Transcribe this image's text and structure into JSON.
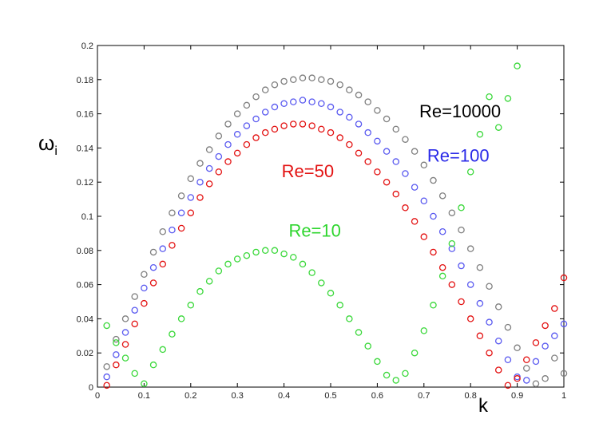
{
  "chart_data": {
    "type": "scatter",
    "xlabel": "k",
    "ylabel": "ω",
    "ylabel_subscript": "i",
    "xlim": [
      0,
      1
    ],
    "ylim": [
      0,
      0.2
    ],
    "grid": false,
    "x_ticks": [
      "0",
      "0.1",
      "0.2",
      "0.3",
      "0.4",
      "0.5",
      "0.6",
      "0.7",
      "0.8",
      "0.9",
      "1"
    ],
    "y_ticks": [
      "0",
      "0.02",
      "0.04",
      "0.06",
      "0.08",
      "0.1",
      "0.12",
      "0.14",
      "0.16",
      "0.18",
      "0.2"
    ],
    "annotations": [
      {
        "text": "Re=10000",
        "color": "#000000",
        "at": [
          0.69,
          0.158
        ]
      },
      {
        "text": "Re=100",
        "color": "#2a2ae8",
        "at": [
          0.707,
          0.132
        ]
      },
      {
        "text": "Re=50",
        "color": "#e31212",
        "at": [
          0.395,
          0.123
        ]
      },
      {
        "text": "Re=10",
        "color": "#2fd62f",
        "at": [
          0.41,
          0.088
        ]
      }
    ],
    "series": [
      {
        "color": "#7f7f7f",
        "marker": "open-circle",
        "points": [
          [
            0.02,
            0.012
          ],
          [
            0.04,
            0.028
          ],
          [
            0.06,
            0.04
          ],
          [
            0.08,
            0.053
          ],
          [
            0.1,
            0.066
          ],
          [
            0.12,
            0.079
          ],
          [
            0.14,
            0.091
          ],
          [
            0.16,
            0.102
          ],
          [
            0.18,
            0.112
          ],
          [
            0.2,
            0.122
          ],
          [
            0.22,
            0.131
          ],
          [
            0.24,
            0.139
          ],
          [
            0.26,
            0.147
          ],
          [
            0.28,
            0.154
          ],
          [
            0.3,
            0.16
          ],
          [
            0.32,
            0.165
          ],
          [
            0.34,
            0.17
          ],
          [
            0.36,
            0.174
          ],
          [
            0.38,
            0.177
          ],
          [
            0.4,
            0.179
          ],
          [
            0.42,
            0.18
          ],
          [
            0.44,
            0.181
          ],
          [
            0.46,
            0.181
          ],
          [
            0.48,
            0.18
          ],
          [
            0.5,
            0.179
          ],
          [
            0.52,
            0.177
          ],
          [
            0.54,
            0.174
          ],
          [
            0.56,
            0.171
          ],
          [
            0.58,
            0.167
          ],
          [
            0.6,
            0.162
          ],
          [
            0.62,
            0.157
          ],
          [
            0.64,
            0.151
          ],
          [
            0.66,
            0.145
          ],
          [
            0.68,
            0.138
          ],
          [
            0.7,
            0.13
          ],
          [
            0.72,
            0.121
          ],
          [
            0.74,
            0.112
          ],
          [
            0.76,
            0.102
          ],
          [
            0.78,
            0.092
          ],
          [
            0.8,
            0.081
          ],
          [
            0.82,
            0.07
          ],
          [
            0.84,
            0.059
          ],
          [
            0.86,
            0.047
          ],
          [
            0.88,
            0.035
          ],
          [
            0.9,
            0.023
          ],
          [
            0.92,
            0.011
          ],
          [
            0.94,
            0.002
          ],
          [
            0.96,
            0.005
          ],
          [
            0.98,
            0.017
          ],
          [
            1.0,
            0.008
          ]
        ]
      },
      {
        "color": "#5a5af0",
        "marker": "open-circle",
        "points": [
          [
            0.02,
            0.006
          ],
          [
            0.04,
            0.019
          ],
          [
            0.06,
            0.032
          ],
          [
            0.08,
            0.045
          ],
          [
            0.1,
            0.058
          ],
          [
            0.12,
            0.07
          ],
          [
            0.14,
            0.081
          ],
          [
            0.16,
            0.092
          ],
          [
            0.18,
            0.102
          ],
          [
            0.2,
            0.111
          ],
          [
            0.22,
            0.12
          ],
          [
            0.24,
            0.128
          ],
          [
            0.26,
            0.135
          ],
          [
            0.28,
            0.142
          ],
          [
            0.3,
            0.148
          ],
          [
            0.32,
            0.153
          ],
          [
            0.34,
            0.157
          ],
          [
            0.36,
            0.161
          ],
          [
            0.38,
            0.164
          ],
          [
            0.4,
            0.166
          ],
          [
            0.42,
            0.167
          ],
          [
            0.44,
            0.168
          ],
          [
            0.46,
            0.167
          ],
          [
            0.48,
            0.166
          ],
          [
            0.5,
            0.164
          ],
          [
            0.52,
            0.161
          ],
          [
            0.54,
            0.158
          ],
          [
            0.56,
            0.154
          ],
          [
            0.58,
            0.149
          ],
          [
            0.6,
            0.144
          ],
          [
            0.62,
            0.138
          ],
          [
            0.64,
            0.132
          ],
          [
            0.66,
            0.125
          ],
          [
            0.68,
            0.117
          ],
          [
            0.7,
            0.109
          ],
          [
            0.72,
            0.1
          ],
          [
            0.74,
            0.091
          ],
          [
            0.76,
            0.081
          ],
          [
            0.78,
            0.071
          ],
          [
            0.8,
            0.06
          ],
          [
            0.82,
            0.049
          ],
          [
            0.84,
            0.038
          ],
          [
            0.86,
            0.027
          ],
          [
            0.88,
            0.016
          ],
          [
            0.9,
            0.006
          ],
          [
            0.92,
            0.004
          ],
          [
            0.94,
            0.015
          ],
          [
            0.96,
            0.024
          ],
          [
            0.98,
            0.03
          ],
          [
            1.0,
            0.037
          ]
        ]
      },
      {
        "color": "#e31212",
        "marker": "open-circle",
        "points": [
          [
            0.02,
            0.001
          ],
          [
            0.04,
            0.013
          ],
          [
            0.06,
            0.025
          ],
          [
            0.08,
            0.037
          ],
          [
            0.1,
            0.049
          ],
          [
            0.12,
            0.061
          ],
          [
            0.14,
            0.072
          ],
          [
            0.16,
            0.083
          ],
          [
            0.18,
            0.093
          ],
          [
            0.2,
            0.102
          ],
          [
            0.22,
            0.111
          ],
          [
            0.24,
            0.119
          ],
          [
            0.26,
            0.126
          ],
          [
            0.28,
            0.132
          ],
          [
            0.3,
            0.137
          ],
          [
            0.32,
            0.142
          ],
          [
            0.34,
            0.146
          ],
          [
            0.36,
            0.149
          ],
          [
            0.38,
            0.151
          ],
          [
            0.4,
            0.153
          ],
          [
            0.42,
            0.154
          ],
          [
            0.44,
            0.154
          ],
          [
            0.46,
            0.153
          ],
          [
            0.48,
            0.151
          ],
          [
            0.5,
            0.149
          ],
          [
            0.52,
            0.146
          ],
          [
            0.54,
            0.142
          ],
          [
            0.56,
            0.137
          ],
          [
            0.58,
            0.132
          ],
          [
            0.6,
            0.126
          ],
          [
            0.62,
            0.12
          ],
          [
            0.64,
            0.113
          ],
          [
            0.66,
            0.105
          ],
          [
            0.68,
            0.097
          ],
          [
            0.7,
            0.088
          ],
          [
            0.72,
            0.079
          ],
          [
            0.74,
            0.07
          ],
          [
            0.76,
            0.06
          ],
          [
            0.78,
            0.05
          ],
          [
            0.8,
            0.04
          ],
          [
            0.82,
            0.03
          ],
          [
            0.84,
            0.02
          ],
          [
            0.86,
            0.01
          ],
          [
            0.88,
            0.001
          ],
          [
            0.9,
            0.005
          ],
          [
            0.92,
            0.016
          ],
          [
            0.94,
            0.026
          ],
          [
            0.96,
            0.036
          ],
          [
            0.98,
            0.046
          ],
          [
            1.0,
            0.064
          ]
        ]
      },
      {
        "color": "#3ad83a",
        "marker": "open-circle",
        "points": [
          [
            0.02,
            0.036
          ],
          [
            0.04,
            0.026
          ],
          [
            0.06,
            0.017
          ],
          [
            0.08,
            0.008
          ],
          [
            0.1,
            0.002
          ],
          [
            0.12,
            0.013
          ],
          [
            0.14,
            0.022
          ],
          [
            0.16,
            0.031
          ],
          [
            0.18,
            0.04
          ],
          [
            0.2,
            0.048
          ],
          [
            0.22,
            0.056
          ],
          [
            0.24,
            0.062
          ],
          [
            0.26,
            0.068
          ],
          [
            0.28,
            0.072
          ],
          [
            0.3,
            0.075
          ],
          [
            0.32,
            0.077
          ],
          [
            0.34,
            0.079
          ],
          [
            0.36,
            0.08
          ],
          [
            0.38,
            0.08
          ],
          [
            0.4,
            0.078
          ],
          [
            0.42,
            0.076
          ],
          [
            0.44,
            0.072
          ],
          [
            0.46,
            0.067
          ],
          [
            0.48,
            0.061
          ],
          [
            0.5,
            0.055
          ],
          [
            0.52,
            0.048
          ],
          [
            0.54,
            0.04
          ],
          [
            0.56,
            0.032
          ],
          [
            0.58,
            0.024
          ],
          [
            0.6,
            0.015
          ],
          [
            0.62,
            0.007
          ],
          [
            0.64,
            0.004
          ],
          [
            0.66,
            0.008
          ],
          [
            0.68,
            0.02
          ],
          [
            0.7,
            0.033
          ],
          [
            0.72,
            0.048
          ],
          [
            0.74,
            0.065
          ],
          [
            0.76,
            0.084
          ],
          [
            0.78,
            0.105
          ],
          [
            0.8,
            0.126
          ],
          [
            0.82,
            0.148
          ],
          [
            0.84,
            0.17
          ],
          [
            0.86,
            0.152
          ],
          [
            0.88,
            0.169
          ],
          [
            0.9,
            0.188
          ]
        ]
      }
    ]
  }
}
